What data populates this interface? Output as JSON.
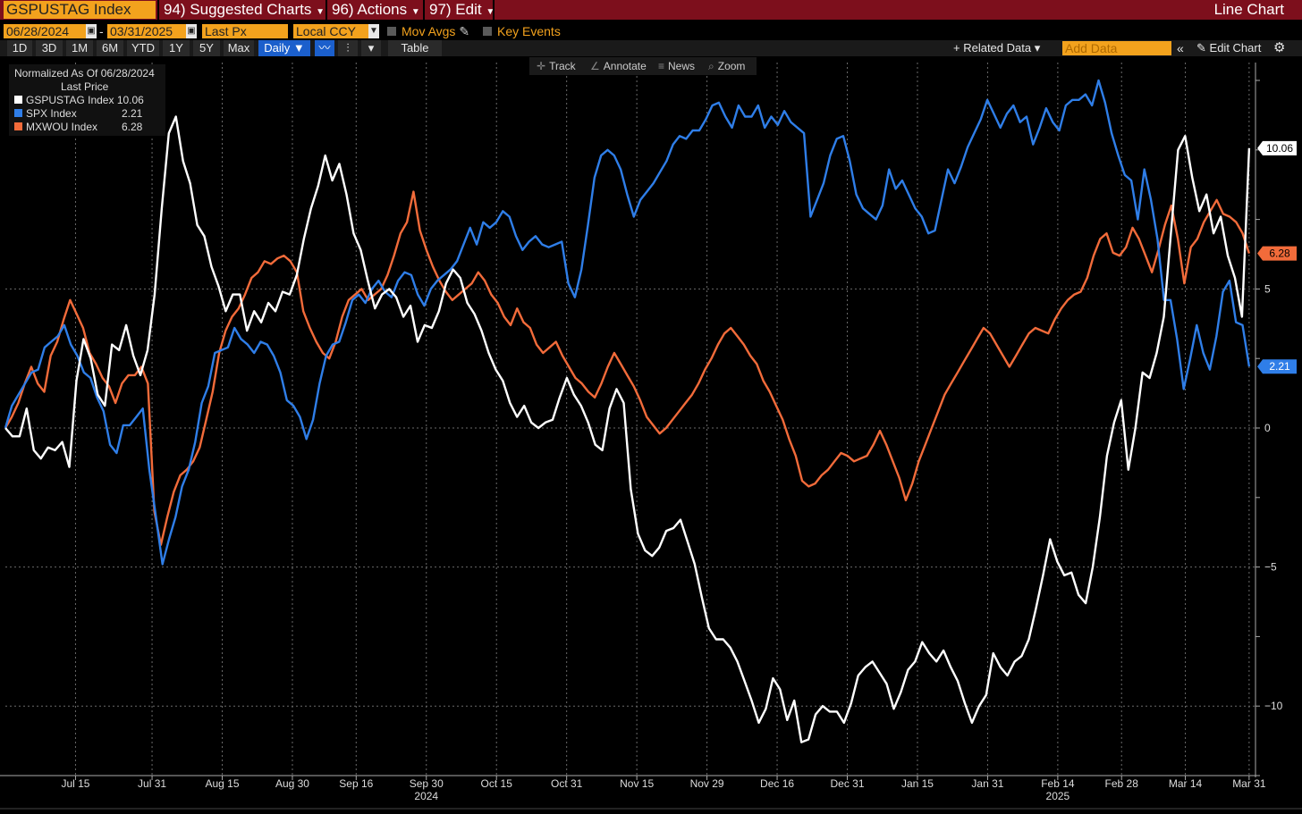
{
  "header": {
    "ticker": "GSPUSTAG Index",
    "suggested_charts": "94) Suggested Charts",
    "actions": "96) Actions",
    "edit": "97) Edit",
    "chart_type": "Line Chart"
  },
  "controls": {
    "start_date": "06/28/2024",
    "dash": "-",
    "end_date": "03/31/2025",
    "field": "Last Px",
    "currency": "Local CCY",
    "mov_avgs": "Mov Avgs",
    "key_events": "Key Events"
  },
  "ranges": [
    "1D",
    "3D",
    "1M",
    "6M",
    "YTD",
    "1Y",
    "5Y",
    "Max"
  ],
  "periodicity": "Daily",
  "table_label": "Table",
  "related_data": "+ Related Data",
  "add_data_placeholder": "Add Data",
  "edit_chart": "Edit Chart",
  "tools": {
    "track": "Track",
    "annotate": "Annotate",
    "news": "News",
    "zoom": "Zoom"
  },
  "colors": {
    "gspustag": "#ffffff",
    "spx": "#2f7ee8",
    "mxwou": "#f26b3a",
    "accent_orange": "#f3a21d",
    "header_red": "#7d0f1c"
  },
  "chart_data": {
    "type": "line",
    "legend_title_1": "Normalized As Of 06/28/2024",
    "legend_title_2": "Last Price",
    "legend_placement": "top-left",
    "grid": true,
    "ylim": [
      -12.5,
      12.5
    ],
    "yticks": [
      -10,
      -5,
      0,
      5
    ],
    "xlim": [
      0,
      196
    ],
    "x_tick_positions": [
      11,
      23,
      34,
      45,
      55,
      66,
      77,
      88,
      99,
      110,
      121,
      132,
      143,
      154,
      165,
      175,
      185,
      195
    ],
    "x_ticks": [
      "Jul 15",
      "Jul 31",
      "Aug 15",
      "Aug 30",
      "Sep 16",
      "Sep 30",
      "Oct 15",
      "Oct 31",
      "Nov 15",
      "Nov 29",
      "Dec 16",
      "Dec 31",
      "Jan 15",
      "Jan 31",
      "Feb 14",
      "Feb 28",
      "Mar 14",
      "Mar 31"
    ],
    "year_labels": [
      {
        "x": 66,
        "label": "2024"
      },
      {
        "x": 165,
        "label": "2025"
      }
    ],
    "series": [
      {
        "name": "GSPUSTAG Index",
        "last": "10.06",
        "values": [
          0,
          -0.3,
          -0.3,
          0.7,
          -0.8,
          -1.1,
          -0.7,
          -0.8,
          -0.5,
          -1.4,
          1.7,
          3.2,
          2.5,
          1.2,
          0.8,
          3.0,
          2.8,
          3.7,
          2.6,
          1.9,
          2.8,
          4.8,
          7.9,
          10.6,
          11.2,
          9.6,
          8.8,
          7.3,
          6.9,
          5.8,
          5.1,
          4.2,
          4.8,
          4.8,
          3.5,
          4.2,
          3.8,
          4.5,
          4.2,
          4.9,
          4.8,
          5.5,
          6.8,
          7.9,
          8.7,
          9.8,
          8.9,
          9.5,
          8.4,
          7.0,
          6.4,
          5.3,
          4.3,
          4.8,
          5.0,
          4.7,
          4.0,
          4.4,
          3.1,
          3.7,
          3.6,
          4.2,
          5.2,
          5.7,
          5.4,
          4.5,
          4.1,
          3.5,
          2.7,
          2.1,
          1.7,
          0.9,
          0.4,
          0.8,
          0.2,
          0.0,
          0.2,
          0.3,
          1.1,
          1.8,
          1.2,
          0.8,
          0.2,
          -0.6,
          -0.8,
          0.7,
          1.4,
          0.9,
          -2.2,
          -3.8,
          -4.4,
          -4.6,
          -4.3,
          -3.7,
          -3.6,
          -3.3,
          -4.1,
          -4.9,
          -6.1,
          -7.2,
          -7.6,
          -7.6,
          -7.9,
          -8.4,
          -9.1,
          -9.8,
          -10.6,
          -10.1,
          -9.0,
          -9.4,
          -10.5,
          -9.8,
          -11.3,
          -11.2,
          -10.3,
          -10.0,
          -10.2,
          -10.2,
          -10.6,
          -9.9,
          -8.9,
          -8.6,
          -8.4,
          -8.8,
          -9.2,
          -10.1,
          -9.5,
          -8.7,
          -8.4,
          -7.7,
          -8.1,
          -8.4,
          -8.0,
          -8.6,
          -9.1,
          -9.9,
          -10.6,
          -10.0,
          -9.6,
          -8.1,
          -8.6,
          -8.9,
          -8.4,
          -8.2,
          -7.6,
          -6.5,
          -5.3,
          -4.0,
          -4.8,
          -5.3,
          -5.2,
          -6.0,
          -6.3,
          -5.0,
          -3.2,
          -1.0,
          0.2,
          1.0,
          -1.5,
          0.0,
          2.0,
          1.8,
          2.7,
          4.0,
          7.0,
          10.0,
          10.5,
          9.0,
          7.8,
          8.4,
          7.0,
          7.6,
          6.2,
          5.4,
          4.0,
          10.06
        ]
      },
      {
        "name": "SPX Index",
        "last": "2.21",
        "values": [
          0,
          0.8,
          1.2,
          1.6,
          2.0,
          2.1,
          2.9,
          3.1,
          3.3,
          3.7,
          3.0,
          2.6,
          2.0,
          1.8,
          1.1,
          0.6,
          -0.6,
          -0.9,
          0.1,
          0.1,
          0.4,
          0.7,
          -1.5,
          -3.2,
          -4.9,
          -4.0,
          -3.2,
          -2.1,
          -1.5,
          -0.5,
          0.9,
          1.5,
          2.7,
          2.8,
          2.9,
          3.6,
          3.2,
          3.0,
          2.7,
          3.1,
          3.0,
          2.6,
          2.0,
          1.0,
          0.8,
          0.4,
          -0.4,
          0.3,
          1.6,
          2.6,
          3.0,
          3.1,
          3.8,
          4.6,
          4.8,
          4.5,
          5.0,
          5.3,
          4.9,
          4.7,
          5.3,
          5.6,
          5.5,
          4.8,
          4.4,
          5.0,
          5.3,
          5.5,
          5.7,
          6.0,
          6.6,
          7.2,
          6.6,
          7.4,
          7.2,
          7.4,
          7.8,
          7.6,
          6.9,
          6.4,
          6.7,
          6.9,
          6.6,
          6.5,
          6.6,
          6.7,
          5.2,
          4.7,
          5.7,
          7.3,
          9.0,
          9.8,
          10.0,
          9.8,
          9.3,
          8.4,
          7.6,
          8.2,
          8.5,
          8.8,
          9.2,
          9.6,
          10.2,
          10.5,
          10.4,
          10.7,
          10.7,
          11.1,
          11.6,
          11.7,
          11.2,
          10.8,
          11.6,
          11.2,
          11.2,
          11.6,
          10.8,
          11.2,
          10.9,
          11.4,
          11.0,
          10.8,
          10.6,
          7.6,
          8.2,
          8.8,
          9.8,
          10.4,
          10.5,
          9.6,
          8.4,
          7.9,
          7.7,
          7.5,
          8.0,
          9.3,
          8.6,
          8.9,
          8.4,
          7.9,
          7.6,
          7.0,
          7.1,
          8.2,
          9.3,
          8.8,
          9.4,
          10.1,
          10.6,
          11.1,
          11.8,
          11.3,
          10.8,
          11.3,
          11.6,
          11.0,
          11.2,
          10.2,
          10.8,
          11.5,
          11.0,
          10.7,
          11.6,
          11.8,
          11.8,
          12.0,
          11.6,
          12.5,
          11.7,
          10.6,
          9.8,
          9.1,
          8.9,
          7.5,
          9.3,
          8.2,
          6.8,
          4.6,
          4.6,
          3.2,
          1.4,
          2.5,
          3.7,
          2.7,
          2.1,
          3.3,
          4.9,
          5.3,
          3.8,
          3.7,
          2.21
        ]
      },
      {
        "name": "MXWOU Index",
        "last": "6.28",
        "values": [
          0,
          0.4,
          0.9,
          1.6,
          2.2,
          1.6,
          1.3,
          2.6,
          3.1,
          3.9,
          4.6,
          4.1,
          3.6,
          2.7,
          2.3,
          1.8,
          1.5,
          0.9,
          1.6,
          1.9,
          1.9,
          2.2,
          1.6,
          -3.0,
          -4.2,
          -3.2,
          -2.3,
          -1.7,
          -1.5,
          -1.2,
          -0.7,
          0.3,
          1.3,
          2.7,
          3.5,
          4.0,
          4.3,
          4.8,
          5.4,
          5.6,
          6.0,
          5.9,
          6.1,
          6.2,
          6.0,
          5.6,
          4.2,
          3.6,
          3.1,
          2.7,
          2.5,
          3.1,
          4.0,
          4.6,
          4.8,
          5.0,
          4.6,
          4.8,
          5.0,
          5.5,
          6.2,
          7.0,
          7.4,
          8.5,
          7.1,
          6.4,
          5.8,
          5.3,
          4.9,
          4.6,
          4.8,
          5.0,
          5.2,
          5.6,
          5.3,
          4.8,
          4.5,
          4.0,
          3.7,
          4.3,
          3.8,
          3.6,
          3.0,
          2.7,
          2.9,
          3.1,
          2.6,
          2.2,
          1.8,
          1.6,
          1.3,
          1.1,
          1.6,
          2.2,
          2.7,
          2.3,
          1.9,
          1.5,
          1.0,
          0.4,
          0.1,
          -0.2,
          0.0,
          0.3,
          0.6,
          0.9,
          1.2,
          1.6,
          2.1,
          2.5,
          3.0,
          3.4,
          3.6,
          3.3,
          3.0,
          2.6,
          2.3,
          1.7,
          1.3,
          0.8,
          0.3,
          -0.4,
          -1.0,
          -1.9,
          -2.1,
          -2.0,
          -1.7,
          -1.5,
          -1.2,
          -0.9,
          -1.0,
          -1.2,
          -1.1,
          -1.0,
          -0.6,
          -0.1,
          -0.6,
          -1.2,
          -1.8,
          -2.6,
          -2.0,
          -1.2,
          -0.6,
          0.0,
          0.6,
          1.2,
          1.6,
          2.0,
          2.4,
          2.8,
          3.2,
          3.6,
          3.4,
          3.0,
          2.6,
          2.2,
          2.6,
          3.0,
          3.4,
          3.6,
          3.5,
          3.4,
          3.9,
          4.3,
          4.6,
          4.8,
          4.9,
          5.4,
          6.2,
          6.8,
          7.0,
          6.3,
          6.2,
          6.5,
          7.2,
          6.8,
          6.2,
          5.6,
          6.4,
          7.3,
          8.0,
          6.8,
          5.2,
          6.5,
          6.8,
          7.4,
          7.8,
          8.2,
          7.7,
          7.6,
          7.4,
          7.0,
          6.28
        ]
      }
    ]
  }
}
